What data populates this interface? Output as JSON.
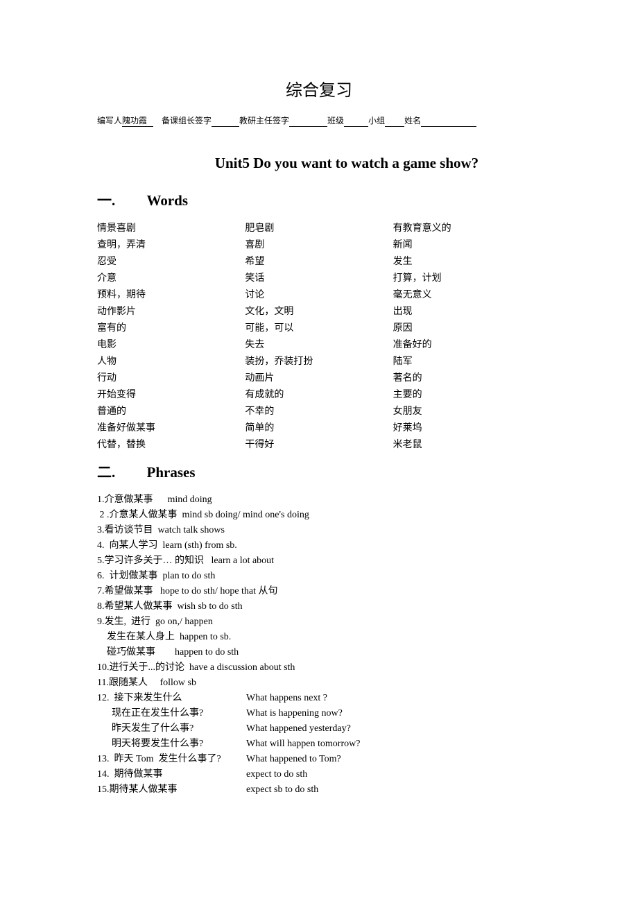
{
  "mainTitle": "综合复习",
  "infoLine": {
    "label1": "编写人",
    "value1": "隗功霞",
    "label2": "备课组长签字",
    "label3": "教研主任签字",
    "label4": "班级",
    "label5": "小组",
    "label6": "姓名"
  },
  "unitTitle": "Unit5    Do you want to watch a game show?",
  "section1": {
    "num": "一.",
    "label": "Words"
  },
  "wordsCol1": [
    "情景喜剧",
    "查明，弄清",
    "忍受",
    "介意",
    "预料，期待",
    "动作影片",
    "富有的",
    "电影",
    "人物",
    "行动",
    "开始变得",
    "普通的",
    "准备好做某事",
    "代替，替换"
  ],
  "wordsCol2": [
    "肥皂剧",
    "喜剧",
    "希望",
    "笑话",
    "讨论",
    "文化，文明",
    "可能，可以",
    "失去",
    "装扮，乔装打扮",
    "动画片",
    "有成就的",
    "不幸的",
    "简单的",
    "干得好"
  ],
  "wordsCol3": [
    "有教育意义的",
    "新闻",
    "发生",
    "打算，计划",
    "毫无意义",
    "出现",
    "原因",
    "准备好的",
    "陆军",
    "著名的",
    "主要的",
    "女朋友",
    "好莱坞",
    "米老鼠"
  ],
  "section2": {
    "num": "二.",
    "label": "Phrases"
  },
  "phrases": [
    {
      "cn": "1.介意做某事      ",
      "en": "mind doing"
    },
    {
      "cn": " 2 .介意某人做某事  ",
      "en": "mind sb doing/ mind one's doing"
    },
    {
      "cn": "3.看访谈节目  ",
      "en": "watch talk shows"
    },
    {
      "cn": "4.  向某人学习  ",
      "en": "learn (sth) from sb."
    },
    {
      "cn": "5.学习许多关于… 的知识   ",
      "en": "learn a lot about"
    },
    {
      "cn": "6.  计划做某事  ",
      "en": "plan to do sth"
    },
    {
      "cn": "7.希望做某事   ",
      "en": "hope to do sth/ hope that  从句"
    },
    {
      "cn": "8.希望某人做某事  ",
      "en": "wish sb to do sth"
    },
    {
      "cn": "9.发生,  进行  ",
      "en": "go on,/ happen"
    },
    {
      "cn": "    发生在某人身上  ",
      "en": "happen to sb.",
      "sub": true
    },
    {
      "cn": "    碰巧做某事        ",
      "en": "happen to do sth",
      "sub": true
    },
    {
      "cn": "10.进行关于...的讨论  ",
      "en": "have a discussion about sth"
    },
    {
      "cn": "11.跟随某人     ",
      "en": "follow sb"
    }
  ],
  "phrasesTwoCol": [
    {
      "left": "12.  接下来发生什么",
      "right": "What happens next ?"
    },
    {
      "left": "      现在正在发生什么事?",
      "right": "What is happening now?",
      "sub": true
    },
    {
      "left": "      昨天发生了什么事?",
      "right": "What happened yesterday?",
      "sub": true
    },
    {
      "left": "      明天将要发生什么事?",
      "right": "What will happen tomorrow?",
      "sub": true
    },
    {
      "left": "13.  昨天 Tom  发生什么事了?",
      "right": "What happened to Tom?"
    },
    {
      "left": "14.  期待做某事",
      "right": " expect to do sth"
    },
    {
      "left": "15.期待某人做某事",
      "right": " expect sb to do sth"
    }
  ]
}
